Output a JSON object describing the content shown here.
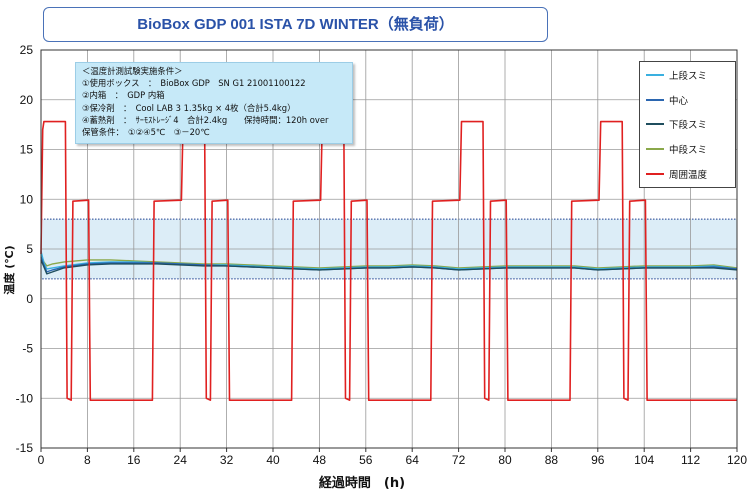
{
  "title": "BioBox GDP 001  ISTA 7D WINTER（無負荷）",
  "notes": [
    "＜温度計測試験実施条件＞",
    "①使用ボックス　：　BioBox GDP　SN G1 21001100122",
    "②内箱　：　GDP 内箱",
    "③保冷剤　：　Cool LAB 3 1.35kg × 4枚（合計5.4kg）",
    "④蓄熱剤　：　ｻｰﾓｽﾄﾚｰｼﾞ4　合計2.4kg　　保持時間：120h over",
    "保管条件：　①②④5℃　③－20℃"
  ],
  "chart_data": {
    "type": "line",
    "title": "BioBox GDP 001  ISTA 7D WINTER（無負荷）",
    "xlabel": "経過時間　(h)",
    "ylabel": "温度 (℃)",
    "xlim": [
      0,
      120
    ],
    "ylim": [
      -15,
      25
    ],
    "x_ticks": [
      0,
      8,
      16,
      24,
      32,
      40,
      48,
      56,
      64,
      72,
      80,
      88,
      96,
      104,
      112,
      120
    ],
    "y_ticks": [
      -15,
      -10,
      -5,
      0,
      5,
      10,
      15,
      20,
      25
    ],
    "grid": true,
    "legend_position": "top-right",
    "band": {
      "y_min": 2,
      "y_max": 8,
      "color": "#dcedf7"
    },
    "series": [
      {
        "name": "上段スミ",
        "color": "#3ab0e0",
        "x": [
          0,
          0.5,
          1,
          2,
          4,
          8,
          12,
          16,
          20,
          24,
          28,
          32,
          36,
          40,
          44,
          48,
          52,
          56,
          60,
          64,
          68,
          72,
          76,
          80,
          84,
          88,
          92,
          96,
          100,
          104,
          108,
          112,
          116,
          120
        ],
        "y": [
          4.8,
          3.6,
          3.0,
          3.1,
          3.3,
          3.6,
          3.7,
          3.7,
          3.6,
          3.5,
          3.4,
          3.4,
          3.3,
          3.2,
          3.1,
          3.0,
          3.1,
          3.2,
          3.2,
          3.3,
          3.2,
          3.0,
          3.1,
          3.2,
          3.2,
          3.2,
          3.2,
          3.0,
          3.1,
          3.2,
          3.2,
          3.2,
          3.3,
          3.0
        ]
      },
      {
        "name": "中心",
        "color": "#2b66b0",
        "x": [
          0,
          0.5,
          1,
          2,
          4,
          8,
          12,
          16,
          20,
          24,
          28,
          32,
          36,
          40,
          44,
          48,
          52,
          56,
          60,
          64,
          68,
          72,
          76,
          80,
          84,
          88,
          92,
          96,
          100,
          104,
          108,
          112,
          116,
          120
        ],
        "y": [
          4.2,
          3.4,
          2.7,
          2.9,
          3.2,
          3.5,
          3.6,
          3.6,
          3.6,
          3.5,
          3.4,
          3.3,
          3.2,
          3.1,
          3.0,
          2.9,
          3.0,
          3.1,
          3.1,
          3.2,
          3.1,
          2.9,
          3.0,
          3.1,
          3.1,
          3.1,
          3.1,
          2.9,
          3.0,
          3.1,
          3.1,
          3.1,
          3.2,
          3.0
        ]
      },
      {
        "name": "下段スミ",
        "color": "#1f4e5e",
        "x": [
          0,
          0.5,
          1,
          2,
          4,
          8,
          12,
          16,
          20,
          24,
          28,
          32,
          36,
          40,
          44,
          48,
          52,
          56,
          60,
          64,
          68,
          72,
          76,
          80,
          84,
          88,
          92,
          96,
          100,
          104,
          108,
          112,
          116,
          120
        ],
        "y": [
          3.9,
          3.2,
          2.5,
          2.7,
          3.1,
          3.4,
          3.5,
          3.5,
          3.5,
          3.4,
          3.3,
          3.3,
          3.2,
          3.1,
          3.0,
          2.9,
          3.0,
          3.1,
          3.1,
          3.2,
          3.1,
          2.9,
          3.0,
          3.1,
          3.1,
          3.1,
          3.1,
          2.9,
          3.0,
          3.1,
          3.1,
          3.1,
          3.1,
          2.9
        ]
      },
      {
        "name": "中段スミ",
        "color": "#8aa84a",
        "x": [
          0,
          0.5,
          1,
          2,
          4,
          8,
          12,
          16,
          20,
          24,
          28,
          32,
          36,
          40,
          44,
          48,
          52,
          56,
          60,
          64,
          68,
          72,
          76,
          80,
          84,
          88,
          92,
          96,
          100,
          104,
          108,
          112,
          116,
          120
        ],
        "y": [
          4.5,
          3.7,
          3.3,
          3.5,
          3.7,
          3.9,
          3.9,
          3.8,
          3.7,
          3.6,
          3.5,
          3.5,
          3.4,
          3.3,
          3.2,
          3.1,
          3.2,
          3.3,
          3.3,
          3.4,
          3.3,
          3.1,
          3.2,
          3.3,
          3.3,
          3.3,
          3.3,
          3.1,
          3.2,
          3.3,
          3.3,
          3.3,
          3.4,
          3.1
        ]
      },
      {
        "name": "周囲温度",
        "color": "#e02020",
        "x": [
          0,
          0.3,
          0.5,
          4.2,
          4.5,
          5.2,
          5.5,
          8.2,
          8.5,
          19.2,
          19.5,
          24.2,
          24.5,
          28.2,
          28.5,
          29.2,
          29.5,
          32.2,
          32.5,
          43.2,
          43.5,
          48.2,
          48.5,
          52.2,
          52.5,
          53.2,
          53.5,
          56.2,
          56.5,
          67.2,
          67.5,
          72.2,
          72.5,
          76.2,
          76.5,
          77.2,
          77.5,
          80.2,
          80.5,
          91.2,
          91.5,
          96.2,
          96.5,
          100.2,
          100.5,
          101.2,
          101.5,
          104.2,
          104.5,
          115.2,
          115.5,
          120
        ],
        "y": [
          4.5,
          17.0,
          17.8,
          17.8,
          -10.0,
          -10.2,
          9.8,
          9.9,
          -10.2,
          -10.2,
          9.8,
          9.9,
          17.8,
          17.8,
          -10.0,
          -10.2,
          9.8,
          9.9,
          -10.2,
          -10.2,
          9.8,
          9.9,
          17.8,
          17.8,
          -10.0,
          -10.2,
          9.8,
          9.9,
          -10.2,
          -10.2,
          9.8,
          9.9,
          17.8,
          17.8,
          -10.0,
          -10.2,
          9.8,
          9.9,
          -10.2,
          -10.2,
          9.8,
          9.9,
          17.8,
          17.8,
          -10.0,
          -10.2,
          9.8,
          9.9,
          -10.2,
          -10.2,
          -10.2,
          -10.2
        ]
      }
    ]
  }
}
